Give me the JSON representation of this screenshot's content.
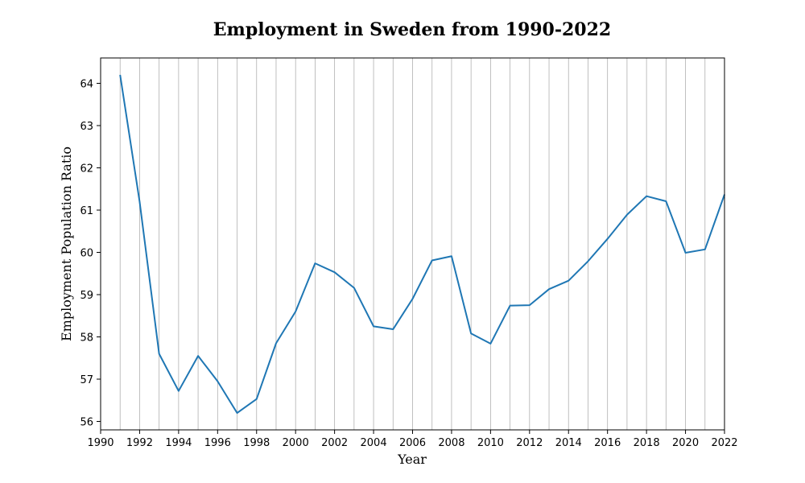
{
  "chart_data": {
    "type": "line",
    "title": "Employment in Sweden from 1990-2022",
    "xlabel": "Year",
    "ylabel": "Employment Population Ratio",
    "xlim": [
      1990,
      2022
    ],
    "ylim": [
      55.8,
      64.6
    ],
    "x_ticks": [
      "1990",
      "1992",
      "1994",
      "1996",
      "1998",
      "2000",
      "2002",
      "2004",
      "2006",
      "2008",
      "2010",
      "2012",
      "2014",
      "2016",
      "2018",
      "2020",
      "2022"
    ],
    "y_ticks": [
      "56",
      "57",
      "58",
      "59",
      "60",
      "61",
      "62",
      "63",
      "64"
    ],
    "grid": "vertical, yearly",
    "line_color": "#1f77b4",
    "series": [
      {
        "x": [
          1991,
          1992,
          1993,
          1994,
          1995,
          1996,
          1997,
          1998,
          1999,
          2000,
          2001,
          2002,
          2003,
          2004,
          2005,
          2006,
          2007,
          2008,
          2009,
          2010,
          2011,
          2012,
          2013,
          2014,
          2015,
          2016,
          2017,
          2018,
          2019,
          2020,
          2021,
          2022
        ],
        "values": [
          64.2,
          61.2,
          57.6,
          56.72,
          57.55,
          56.95,
          56.2,
          56.53,
          57.85,
          58.6,
          59.74,
          59.53,
          59.16,
          58.25,
          58.18,
          58.9,
          59.81,
          59.91,
          58.08,
          57.84,
          58.74,
          58.75,
          59.13,
          59.33,
          59.79,
          60.32,
          60.89,
          61.33,
          61.21,
          59.99,
          60.07,
          61.37
        ]
      }
    ]
  }
}
